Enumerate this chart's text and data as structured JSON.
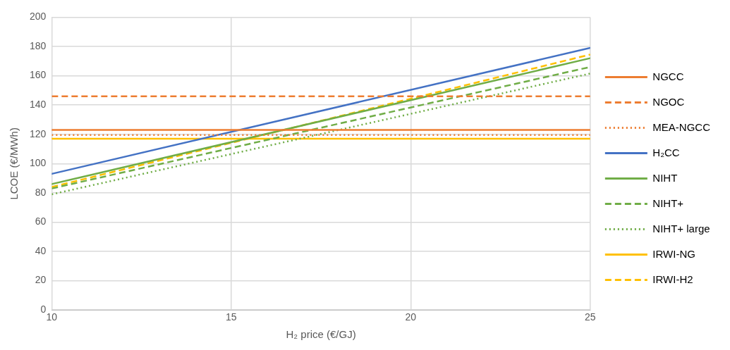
{
  "chart_data": {
    "type": "line",
    "xlabel": "H₂ price (€/GJ)",
    "ylabel": "LCOE (€/MWh)",
    "x": [
      10,
      25
    ],
    "xlim": [
      10,
      25
    ],
    "xticks": [
      10,
      15,
      20,
      25
    ],
    "ylim": [
      0,
      200
    ],
    "yticks": [
      0,
      20,
      40,
      60,
      80,
      100,
      120,
      140,
      160,
      180,
      200
    ],
    "grid": true,
    "legend": "right",
    "marker": "none",
    "series": [
      {
        "name": "NGCC",
        "color": "#ed7d31",
        "line_style": "solid",
        "values": [
          123,
          123
        ]
      },
      {
        "name": "NGOC",
        "color": "#ed7d31",
        "line_style": "dashed",
        "values": [
          146,
          146
        ]
      },
      {
        "name": "MEA-NGCC",
        "color": "#ed7d31",
        "line_style": "dotted",
        "values": [
          119.5,
          119.5
        ]
      },
      {
        "name": "H₂CC",
        "color": "#4472c4",
        "line_style": "solid",
        "values": [
          93,
          179
        ]
      },
      {
        "name": "NIHT",
        "color": "#70ad47",
        "line_style": "solid",
        "values": [
          86,
          172
        ]
      },
      {
        "name": "NIHT+",
        "color": "#70ad47",
        "line_style": "dashed",
        "values": [
          83,
          166
        ]
      },
      {
        "name": "NIHT+ large",
        "color": "#70ad47",
        "line_style": "dotted",
        "values": [
          79,
          161.5
        ]
      },
      {
        "name": "IRWI-NG",
        "color": "#ffc000",
        "line_style": "solid",
        "values": [
          117,
          117
        ]
      },
      {
        "name": "IRWI-H2",
        "color": "#ffc000",
        "line_style": "dashed",
        "values": [
          84,
          174.5
        ]
      }
    ]
  }
}
